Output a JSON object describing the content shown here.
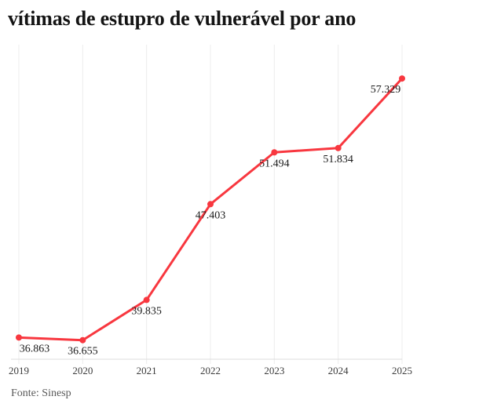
{
  "title": "vítimas de estupro de vulnerável por ano",
  "source": "Fonte: Sinesp",
  "colors": {
    "line": "#f8373f",
    "point": "#f8373f",
    "grid": "#ececec",
    "axis": "#dcdcdc",
    "title_text": "#141414",
    "data_label": "#1a1a1a",
    "tick_label": "#3c3c3c",
    "source_text": "#595959",
    "background": "#ffffff"
  },
  "chart_data": {
    "type": "line",
    "title": "vítimas de estupro de vulnerável por ano",
    "x": [
      "2019",
      "2020",
      "2021",
      "2022",
      "2023",
      "2024",
      "2025"
    ],
    "values": [
      36863,
      36655,
      39835,
      47403,
      51494,
      51834,
      57329
    ],
    "point_labels": [
      "36.863",
      "36.655",
      "39.835",
      "47.403",
      "51.494",
      "51.834",
      "57.329"
    ],
    "xlabel": "",
    "ylabel": "",
    "ylim": [
      35150,
      60000
    ],
    "grid": "vertical-only",
    "legend": "none",
    "source": "Fonte: Sinesp"
  }
}
